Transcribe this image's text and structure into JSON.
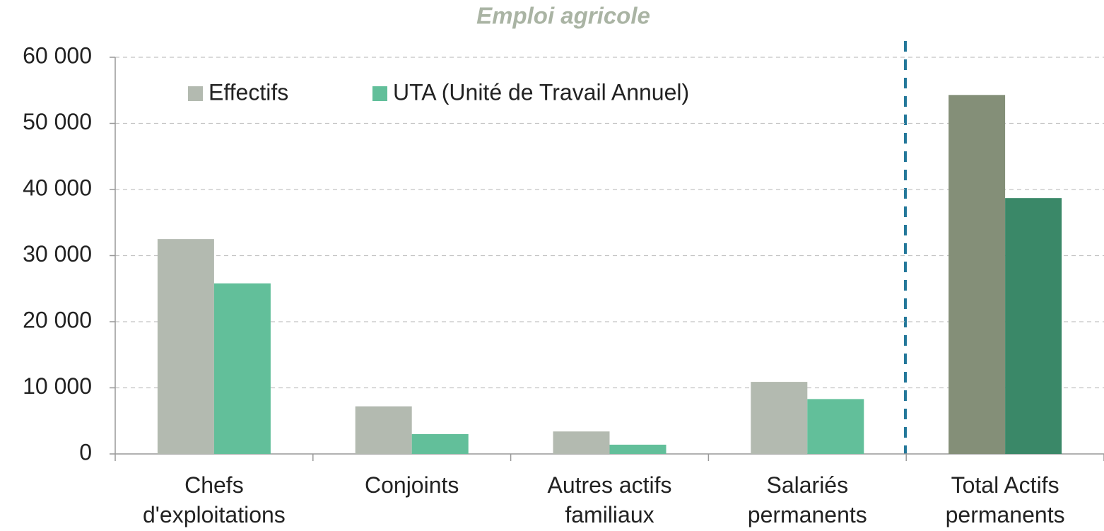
{
  "chart_data": {
    "type": "bar",
    "title": "Emploi agricole",
    "categories": [
      [
        "Chefs",
        "d'exploitations"
      ],
      [
        "Conjoints"
      ],
      [
        "Autres actifs",
        "familiaux"
      ],
      [
        "Salariés",
        "permanents"
      ],
      [
        "Total Actifs",
        "permanents"
      ]
    ],
    "series": [
      {
        "name": "Effectifs",
        "color": "#b3bab0",
        "colors": [
          "#b3bab0",
          "#b3bab0",
          "#b3bab0",
          "#b3bab0",
          "#848f78"
        ],
        "values": [
          32500,
          7200,
          3400,
          10900,
          54300
        ]
      },
      {
        "name": "UTA (Unité de Travail Annuel)",
        "color": "#62bf9a",
        "colors": [
          "#62bf9a",
          "#62bf9a",
          "#62bf9a",
          "#62bf9a",
          "#3a8868"
        ],
        "values": [
          25800,
          3000,
          1400,
          8300,
          38700
        ]
      }
    ],
    "ylim": [
      0,
      60000
    ],
    "yticks": [
      0,
      {
        "value": 10000,
        "label": "10 000"
      },
      {
        "value": 20000,
        "label": "20 000"
      },
      {
        "value": 30000,
        "label": "30 000"
      },
      {
        "value": 40000,
        "label": "40 000"
      },
      {
        "value": 50000,
        "label": "50 000"
      },
      {
        "value": 60000,
        "label": "60 000"
      }
    ],
    "grid": true,
    "legend": "top-left"
  }
}
